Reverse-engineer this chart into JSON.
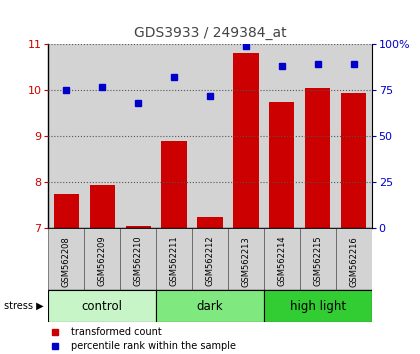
{
  "title": "GDS3933 / 249384_at",
  "samples": [
    "GSM562208",
    "GSM562209",
    "GSM562210",
    "GSM562211",
    "GSM562212",
    "GSM562213",
    "GSM562214",
    "GSM562215",
    "GSM562216"
  ],
  "red_values": [
    7.75,
    7.95,
    7.05,
    8.9,
    7.25,
    10.8,
    9.75,
    10.05,
    9.95
  ],
  "blue_values": [
    75,
    77,
    68,
    82,
    72,
    99,
    88,
    89,
    89
  ],
  "ylim_left": [
    7,
    11
  ],
  "ylim_right": [
    0,
    100
  ],
  "yticks_left": [
    7,
    8,
    9,
    10,
    11
  ],
  "yticks_right": [
    0,
    25,
    50,
    75,
    100
  ],
  "ytick_labels_right": [
    "0",
    "25",
    "50",
    "75",
    "100%"
  ],
  "groups": [
    {
      "label": "control",
      "indices": [
        0,
        1,
        2
      ],
      "color": "#c8f5c8"
    },
    {
      "label": "dark",
      "indices": [
        3,
        4,
        5
      ],
      "color": "#7fe87f"
    },
    {
      "label": "high light",
      "indices": [
        6,
        7,
        8
      ],
      "color": "#32cd32"
    }
  ],
  "stress_label": "stress",
  "legend_red": "transformed count",
  "legend_blue": "percentile rank within the sample",
  "bar_color": "#cc0000",
  "dot_color": "#0000cc",
  "grid_color": "#555555",
  "bg_sample": "#d3d3d3",
  "title_color": "#444444",
  "bar_width": 0.7
}
